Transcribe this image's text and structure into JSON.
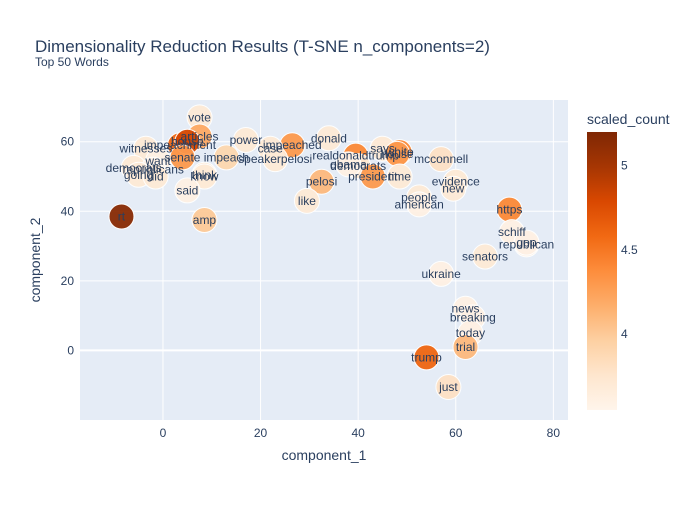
{
  "chart_data": {
    "type": "scatter",
    "title": "Dimensionality Reduction Results (T-SNE n_components=2)",
    "subtitle": "Top 50 Words",
    "xlabel": "component_1",
    "ylabel": "component_2",
    "xlim": [
      -17,
      83
    ],
    "ylim": [
      -20,
      72
    ],
    "xticks": [
      0,
      20,
      40,
      60,
      80
    ],
    "yticks": [
      0,
      20,
      40,
      60
    ],
    "grid": true,
    "colorbar": {
      "title": "scaled_count",
      "range": [
        3.55,
        5.2
      ],
      "ticks": [
        4,
        4.5,
        5
      ],
      "colors": [
        "#fff5eb",
        "#fee6ce",
        "#fdd0a2",
        "#fdae6b",
        "#fd8d3c",
        "#f16913",
        "#d94801",
        "#a63603",
        "#7f2704"
      ]
    },
    "points": [
      {
        "label": "rt",
        "x": -8.5,
        "y": 38.5,
        "value": 5.15
      },
      {
        "label": "vote",
        "x": 7.5,
        "y": 67,
        "value": 3.7
      },
      {
        "label": "articles",
        "x": 7.5,
        "y": 61.5,
        "value": 4.2
      },
      {
        "label": "impeachment",
        "x": 3.5,
        "y": 59,
        "value": 4.6
      },
      {
        "label": "house",
        "x": 5,
        "y": 60,
        "value": 4.8
      },
      {
        "label": "witnesses",
        "x": -3.5,
        "y": 58,
        "value": 3.7
      },
      {
        "label": "senate",
        "x": 4,
        "y": 55.5,
        "value": 4.3
      },
      {
        "label": "impeach",
        "x": 13,
        "y": 55.5,
        "value": 3.9
      },
      {
        "label": "want",
        "x": -1,
        "y": 54.5,
        "value": 3.6
      },
      {
        "label": "democrats",
        "x": -6,
        "y": 52.5,
        "value": 3.7
      },
      {
        "label": "republicans",
        "x": -2,
        "y": 52,
        "value": 3.6
      },
      {
        "label": "going",
        "x": -5,
        "y": 50.5,
        "value": 3.7
      },
      {
        "label": "did",
        "x": -1.5,
        "y": 50,
        "value": 3.7
      },
      {
        "label": "think",
        "x": 8.5,
        "y": 50.5,
        "value": 3.7
      },
      {
        "label": "know",
        "x": 8.5,
        "y": 50,
        "value": 3.7
      },
      {
        "label": "said",
        "x": 5,
        "y": 46,
        "value": 3.6
      },
      {
        "label": "amp",
        "x": 8.5,
        "y": 37.5,
        "value": 4.0
      },
      {
        "label": "power",
        "x": 17,
        "y": 60.5,
        "value": 3.7
      },
      {
        "label": "impeached",
        "x": 26.5,
        "y": 59,
        "value": 4.3
      },
      {
        "label": "case",
        "x": 22,
        "y": 58,
        "value": 3.7
      },
      {
        "label": "speakerpelosi",
        "x": 23,
        "y": 55,
        "value": 3.7
      },
      {
        "label": "donald",
        "x": 34,
        "y": 61,
        "value": 3.7
      },
      {
        "label": "realdonaldtrump",
        "x": 39.5,
        "y": 56,
        "value": 4.4
      },
      {
        "label": "says",
        "x": 45,
        "y": 58,
        "value": 3.7
      },
      {
        "label": "white",
        "x": 48.5,
        "y": 57,
        "value": 4.4
      },
      {
        "label": "house",
        "x": 48,
        "y": 56.5,
        "value": 4.3
      },
      {
        "label": "democrats",
        "x": 40,
        "y": 53,
        "value": 3.7
      },
      {
        "label": "obama",
        "x": 38,
        "y": 53.5,
        "value": 3.6
      },
      {
        "label": "president",
        "x": 43,
        "y": 50,
        "value": 4.3
      },
      {
        "label": "time",
        "x": 48.5,
        "y": 50,
        "value": 3.7
      },
      {
        "label": "pelosi",
        "x": 32.5,
        "y": 48.5,
        "value": 4.1
      },
      {
        "label": "like",
        "x": 29.5,
        "y": 43,
        "value": 3.7
      },
      {
        "label": "mcconnell",
        "x": 57,
        "y": 55,
        "value": 3.8
      },
      {
        "label": "evidence",
        "x": 60,
        "y": 48.5,
        "value": 3.7
      },
      {
        "label": "new",
        "x": 59.5,
        "y": 46.5,
        "value": 3.7
      },
      {
        "label": "people",
        "x": 52.5,
        "y": 44,
        "value": 3.7
      },
      {
        "label": "american",
        "x": 52.5,
        "y": 42,
        "value": 3.6
      },
      {
        "label": "https",
        "x": 71,
        "y": 40.5,
        "value": 4.4
      },
      {
        "label": "schiff",
        "x": 71.5,
        "y": 34,
        "value": 3.6
      },
      {
        "label": "republican",
        "x": 74.5,
        "y": 30.5,
        "value": 3.6
      },
      {
        "label": "gop",
        "x": 74.5,
        "y": 31,
        "value": 3.6
      },
      {
        "label": "senators",
        "x": 66,
        "y": 27,
        "value": 3.7
      },
      {
        "label": "ukraine",
        "x": 57,
        "y": 22,
        "value": 3.6
      },
      {
        "label": "news",
        "x": 62,
        "y": 12,
        "value": 3.6
      },
      {
        "label": "breaking",
        "x": 63.5,
        "y": 9.5,
        "value": 3.6
      },
      {
        "label": "today",
        "x": 63,
        "y": 5,
        "value": 3.6
      },
      {
        "label": "trial",
        "x": 62,
        "y": 1,
        "value": 4.1
      },
      {
        "label": "trump",
        "x": 54,
        "y": -2,
        "value": 4.6
      },
      {
        "label": "just",
        "x": 58.5,
        "y": -10.5,
        "value": 3.8
      }
    ]
  }
}
